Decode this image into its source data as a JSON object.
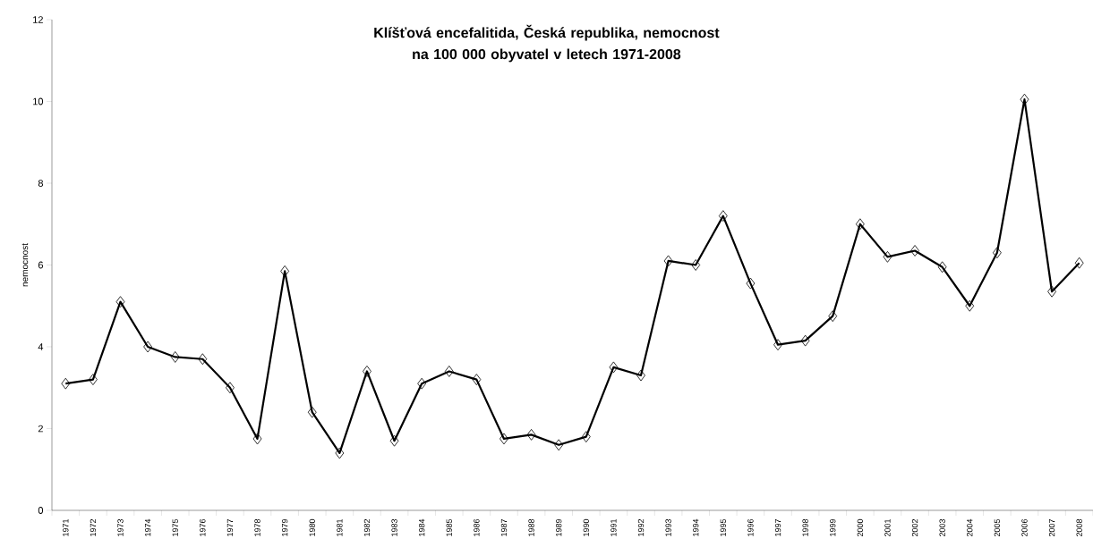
{
  "chart_data": {
    "type": "line",
    "title": "Klíšťová encefalitida, Česká republika, nemocnost na 100 000 obyvatel v letech 1971-2008",
    "ylabel": "nemocnost",
    "categories": [
      "1971",
      "1972",
      "1973",
      "1974",
      "1975",
      "1976",
      "1977",
      "1978",
      "1979",
      "1980",
      "1981",
      "1982",
      "1983",
      "1984",
      "1985",
      "1986",
      "1987",
      "1988",
      "1989",
      "1990",
      "1991",
      "1992",
      "1993",
      "1994",
      "1995",
      "1996",
      "1997",
      "1998",
      "1999",
      "2000",
      "2001",
      "2002",
      "2003",
      "2004",
      "2005",
      "2006",
      "2007",
      "2008"
    ],
    "values": [
      3.1,
      3.2,
      5.1,
      4.0,
      3.75,
      3.7,
      3.0,
      1.75,
      5.85,
      2.4,
      1.4,
      3.4,
      1.7,
      3.1,
      3.4,
      3.2,
      1.75,
      1.85,
      1.6,
      1.8,
      3.5,
      3.3,
      6.1,
      6.0,
      7.2,
      5.55,
      4.05,
      4.15,
      4.75,
      7.0,
      6.2,
      6.35,
      5.95,
      5.0,
      6.3,
      10.05,
      5.35,
      6.05
    ],
    "color": "#000000",
    "marker": "diamond",
    "line_style": "solid",
    "grid": false,
    "ylim": [
      0,
      12
    ],
    "yticks": [
      0,
      2,
      4,
      6,
      8,
      10,
      12
    ]
  }
}
